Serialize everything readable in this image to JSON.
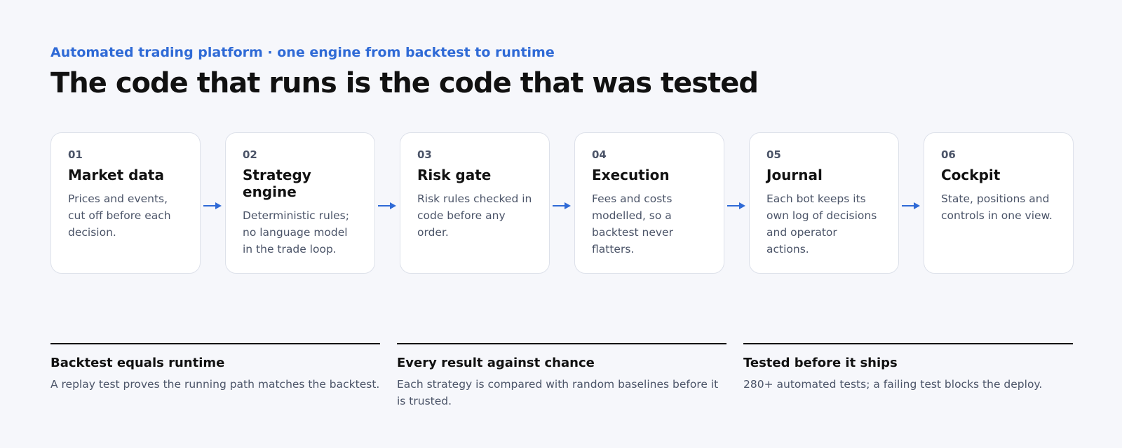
{
  "header": {
    "eyebrow": "Automated trading platform · one engine from backtest to runtime",
    "title": "The code that runs is the code that was tested"
  },
  "steps": [
    {
      "number": "01",
      "title": "Market data",
      "text": "Prices and events, cut off before each decision."
    },
    {
      "number": "02",
      "title": "Strategy engine",
      "text": "Deterministic rules; no language model in the trade loop."
    },
    {
      "number": "03",
      "title": "Risk gate",
      "text": "Risk rules checked in code before any order."
    },
    {
      "number": "04",
      "title": "Execution",
      "text": "Fees and costs modelled, so a backtest never flatters."
    },
    {
      "number": "05",
      "title": "Journal",
      "text": "Each bot keeps its own log of decisions and operator actions."
    },
    {
      "number": "06",
      "title": "Cockpit",
      "text": "State, positions and controls in one view."
    }
  ],
  "points": [
    {
      "title": "Backtest equals runtime",
      "text": "A replay test proves the running path matches the backtest."
    },
    {
      "title": "Every result against chance",
      "text": "Each strategy is compared with random baselines before it is trusted."
    },
    {
      "title": "Tested before it ships",
      "text": "280+ automated tests; a failing test blocks the deploy."
    }
  ]
}
